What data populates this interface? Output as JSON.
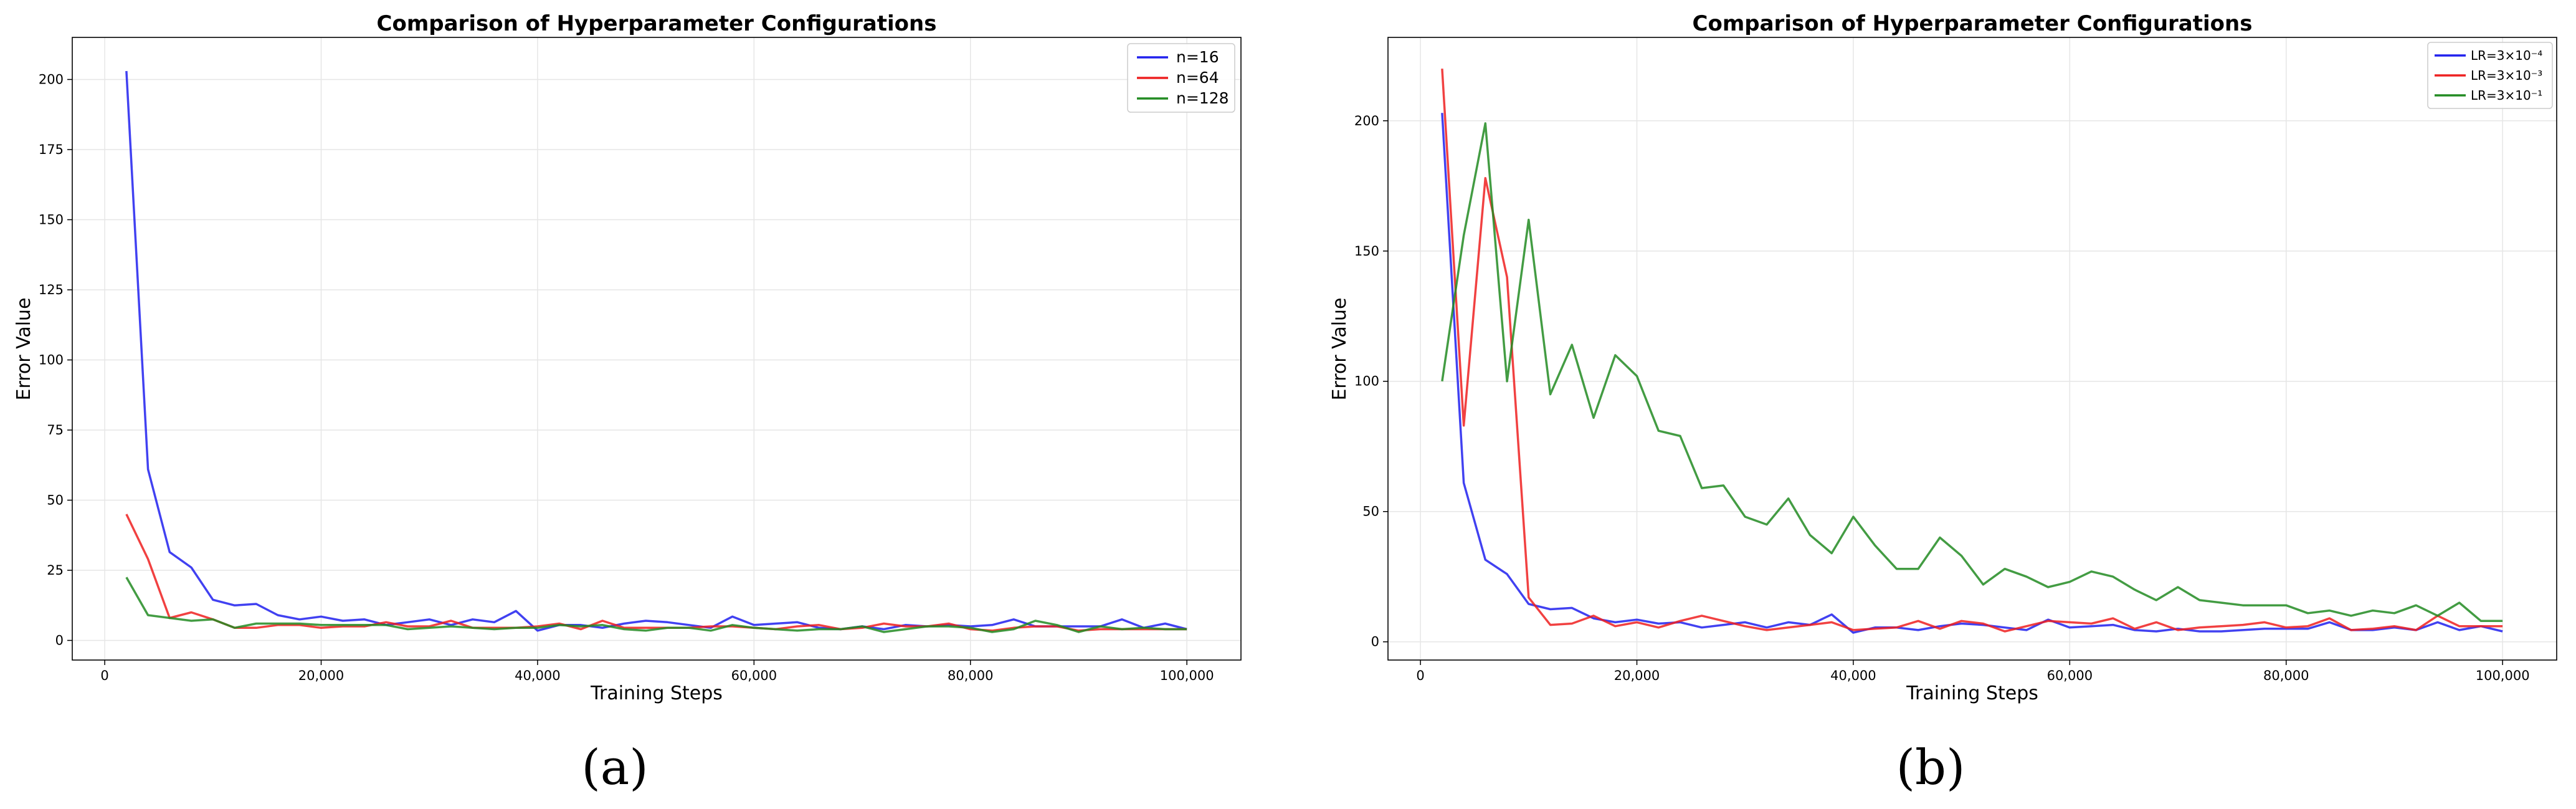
{
  "chart_data": [
    {
      "type": "line",
      "title": "Comparison of Hyperparameter Configurations",
      "xlabel": "Training Steps",
      "ylabel": "Error Value",
      "xlim": [
        -3000,
        105000
      ],
      "ylim": [
        -7,
        215
      ],
      "xticks": [
        0,
        20000,
        40000,
        60000,
        80000,
        100000
      ],
      "xtick_labels": [
        "0",
        "20,000",
        "40,000",
        "60,000",
        "80,000",
        "100,000"
      ],
      "yticks": [
        0,
        25,
        50,
        75,
        100,
        125,
        150,
        175,
        200
      ],
      "ytick_labels": [
        "0",
        "25",
        "50",
        "75",
        "100",
        "125",
        "150",
        "175",
        "200"
      ],
      "grid": true,
      "legend_position": "top-right",
      "panel_label": "(a)",
      "x": [
        2000,
        4000,
        6000,
        8000,
        10000,
        12000,
        14000,
        16000,
        18000,
        20000,
        22000,
        24000,
        26000,
        28000,
        30000,
        32000,
        34000,
        36000,
        38000,
        40000,
        42000,
        44000,
        46000,
        48000,
        50000,
        52000,
        54000,
        56000,
        58000,
        60000,
        62000,
        64000,
        66000,
        68000,
        70000,
        72000,
        74000,
        76000,
        78000,
        80000,
        82000,
        84000,
        86000,
        88000,
        90000,
        92000,
        94000,
        96000,
        98000,
        100000
      ],
      "series": [
        {
          "name": "n=16",
          "color": "#2020ee",
          "values": [
            203,
            61,
            31.5,
            26,
            14.5,
            12.5,
            13,
            9,
            7.5,
            8.5,
            7,
            7.5,
            5.5,
            6.5,
            7.5,
            5.5,
            7.5,
            6.5,
            10.5,
            3.5,
            5.5,
            5.5,
            4.5,
            6,
            7,
            6.5,
            5.5,
            4.5,
            8.5,
            5.5,
            6,
            6.5,
            4.5,
            4,
            5,
            4,
            5.5,
            5,
            5.5,
            5,
            5.5,
            7.5,
            5,
            5,
            5,
            5,
            7.5,
            4.5,
            6,
            4
          ]
        },
        {
          "name": "n=64",
          "color": "#ee2020",
          "values": [
            45,
            29,
            8,
            10,
            7.5,
            4.5,
            4.5,
            5.5,
            5.5,
            4.5,
            5,
            5,
            6.5,
            5,
            5,
            7,
            4.5,
            4.5,
            4.5,
            5,
            6,
            4,
            7,
            4.5,
            4.5,
            4.5,
            4.5,
            5,
            5,
            4.5,
            4,
            5,
            5.5,
            4,
            4.5,
            6,
            5,
            5,
            6,
            4,
            3.5,
            4.5,
            5,
            5,
            3.5,
            4,
            4,
            4,
            4,
            4
          ]
        },
        {
          "name": "n=128",
          "color": "#228b22",
          "values": [
            22.5,
            9,
            8,
            7,
            7.5,
            4.5,
            6,
            6,
            6,
            5.5,
            5.5,
            5.5,
            5.5,
            4,
            4.5,
            5,
            4.5,
            4,
            4.5,
            4.5,
            5.5,
            5,
            5.5,
            4,
            3.5,
            4.5,
            4.5,
            3.5,
            5.5,
            4.5,
            4,
            3.5,
            4,
            4,
            5,
            3,
            4,
            5,
            5,
            4.5,
            3,
            4,
            7,
            5.5,
            3,
            5,
            4,
            4.5,
            4,
            4
          ]
        }
      ]
    },
    {
      "type": "line",
      "title": "Comparison of Hyperparameter Configurations",
      "xlabel": "Training Steps",
      "ylabel": "Error Value",
      "xlim": [
        -3000,
        105000
      ],
      "ylim": [
        -7,
        232
      ],
      "xticks": [
        0,
        20000,
        40000,
        60000,
        80000,
        100000
      ],
      "xtick_labels": [
        "0",
        "20,000",
        "40,000",
        "60,000",
        "80,000",
        "100,000"
      ],
      "yticks": [
        0,
        50,
        100,
        150,
        200
      ],
      "ytick_labels": [
        "0",
        "50",
        "100",
        "150",
        "200"
      ],
      "grid": true,
      "legend_position": "top-right",
      "panel_label": "(b)",
      "x": [
        2000,
        4000,
        6000,
        8000,
        10000,
        12000,
        14000,
        16000,
        18000,
        20000,
        22000,
        24000,
        26000,
        28000,
        30000,
        32000,
        34000,
        36000,
        38000,
        40000,
        42000,
        44000,
        46000,
        48000,
        50000,
        52000,
        54000,
        56000,
        58000,
        60000,
        62000,
        64000,
        66000,
        68000,
        70000,
        72000,
        74000,
        76000,
        78000,
        80000,
        82000,
        84000,
        86000,
        88000,
        90000,
        92000,
        94000,
        96000,
        98000,
        100000
      ],
      "series": [
        {
          "name": "LR=3×10⁻⁴",
          "color": "#2020ee",
          "values": [
            203,
            61,
            31.5,
            26,
            14.5,
            12.5,
            13,
            9,
            7.5,
            8.5,
            7,
            7.5,
            5.5,
            6.5,
            7.5,
            5.5,
            7.5,
            6.5,
            10.5,
            3.5,
            5.5,
            5.5,
            4.5,
            6,
            7,
            6.5,
            5.5,
            4.5,
            8.5,
            5.5,
            6,
            6.5,
            4.5,
            4,
            5,
            4,
            4,
            4.5,
            5,
            5,
            5,
            7.5,
            4.5,
            4.5,
            5.5,
            4.5,
            7.5,
            4.5,
            6,
            4
          ]
        },
        {
          "name": "LR=3×10⁻³",
          "color": "#ee2020",
          "values": [
            220,
            83,
            178,
            140,
            17,
            6.5,
            7,
            10,
            6,
            7.5,
            5.5,
            8,
            10,
            8,
            6,
            4.5,
            5.5,
            6.5,
            7.5,
            4.5,
            5,
            5.5,
            8,
            5,
            8,
            7,
            4,
            6,
            8,
            7.5,
            7,
            9,
            5,
            7.5,
            4.5,
            5.5,
            6,
            6.5,
            7.5,
            5.5,
            6,
            9,
            4.5,
            5,
            6,
            4.5,
            10,
            6,
            6,
            6
          ]
        },
        {
          "name": "LR=3×10⁻¹",
          "color": "#228b22",
          "values": [
            100,
            156,
            199,
            100,
            162,
            95,
            114,
            86,
            110,
            102,
            81,
            79,
            59,
            60,
            48,
            45,
            55,
            41,
            34,
            48,
            37,
            28,
            28,
            40,
            33,
            22,
            28,
            25,
            21,
            23,
            27,
            25,
            20,
            16,
            21,
            16,
            15,
            14,
            14,
            14,
            11,
            12,
            10,
            12,
            11,
            14,
            10,
            15,
            8,
            8
          ]
        }
      ]
    }
  ]
}
